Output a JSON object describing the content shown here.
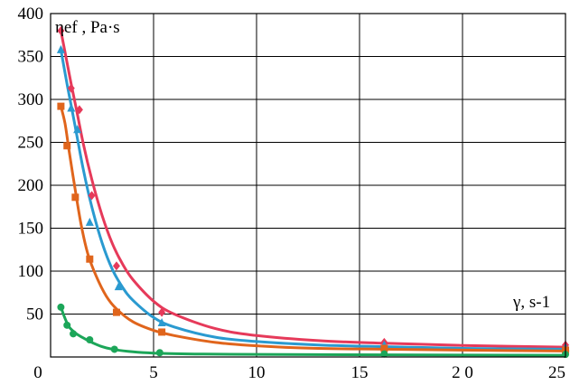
{
  "chart_data": {
    "type": "line",
    "title": "",
    "ylabel": "ηef , Pa·s",
    "xlabel": "γ, s-1",
    "xlim": [
      0,
      25
    ],
    "ylim": [
      0,
      400
    ],
    "grid": true,
    "x_ticks": [
      "0",
      "5",
      "10",
      "15",
      "2 0",
      "25"
    ],
    "y_ticks": [
      "50",
      "100",
      "150",
      "200",
      "250",
      "300",
      "350",
      "400"
    ],
    "series": [
      {
        "color": "#e63a5a",
        "marker": "diamond",
        "points": [
          [
            0.5,
            380
          ],
          [
            1.0,
            313
          ],
          [
            1.4,
            288
          ],
          [
            2.0,
            188
          ],
          [
            3.2,
            106
          ],
          [
            5.4,
            52
          ],
          [
            16.2,
            17
          ],
          [
            25.0,
            14
          ]
        ],
        "curve": [
          [
            0.5,
            380
          ],
          [
            0.8,
            343
          ],
          [
            1.0,
            318
          ],
          [
            1.3,
            283
          ],
          [
            1.6,
            247
          ],
          [
            2.0,
            207
          ],
          [
            2.5,
            165
          ],
          [
            3.0,
            132
          ],
          [
            3.5,
            108
          ],
          [
            4.0,
            90
          ],
          [
            5.0,
            65
          ],
          [
            6.0,
            50
          ],
          [
            8.0,
            33
          ],
          [
            10.0,
            25
          ],
          [
            13.0,
            19
          ],
          [
            16.2,
            16
          ],
          [
            20.0,
            13.5
          ],
          [
            25.0,
            11.5
          ]
        ]
      },
      {
        "color": "#2a9ad0",
        "marker": "triangle",
        "points": [
          [
            0.5,
            358
          ],
          [
            1.0,
            290
          ],
          [
            1.3,
            265
          ],
          [
            1.9,
            157
          ],
          [
            3.3,
            82
          ],
          [
            5.4,
            40
          ],
          [
            16.2,
            14
          ],
          [
            25.0,
            11
          ]
        ],
        "curve": [
          [
            0.5,
            358
          ],
          [
            0.8,
            318
          ],
          [
            1.0,
            293
          ],
          [
            1.3,
            255
          ],
          [
            1.6,
            217
          ],
          [
            2.0,
            175
          ],
          [
            2.5,
            133
          ],
          [
            3.0,
            102
          ],
          [
            3.5,
            81
          ],
          [
            4.0,
            66
          ],
          [
            5.0,
            46
          ],
          [
            6.0,
            35
          ],
          [
            8.0,
            23
          ],
          [
            10.0,
            18
          ],
          [
            13.0,
            14
          ],
          [
            16.2,
            12
          ],
          [
            20.0,
            10
          ],
          [
            25.0,
            9
          ]
        ]
      },
      {
        "color": "#e0651c",
        "marker": "square",
        "points": [
          [
            0.5,
            292
          ],
          [
            0.8,
            246
          ],
          [
            1.2,
            186
          ],
          [
            1.9,
            114
          ],
          [
            3.2,
            52
          ],
          [
            5.4,
            29
          ],
          [
            16.2,
            10
          ],
          [
            25.0,
            8
          ]
        ],
        "curve": [
          [
            0.5,
            292
          ],
          [
            0.7,
            272
          ],
          [
            0.9,
            240
          ],
          [
            1.2,
            194
          ],
          [
            1.5,
            152
          ],
          [
            1.8,
            121
          ],
          [
            2.2,
            95
          ],
          [
            2.7,
            71
          ],
          [
            3.2,
            56
          ],
          [
            4.0,
            41
          ],
          [
            5.0,
            31
          ],
          [
            6.0,
            25
          ],
          [
            8.0,
            17
          ],
          [
            10.0,
            13
          ],
          [
            13.0,
            10
          ],
          [
            16.2,
            9
          ],
          [
            20.0,
            8
          ],
          [
            25.0,
            7
          ]
        ]
      },
      {
        "color": "#1ca659",
        "marker": "circle",
        "points": [
          [
            0.5,
            58
          ],
          [
            0.8,
            37
          ],
          [
            1.1,
            27
          ],
          [
            1.9,
            20
          ],
          [
            3.1,
            9
          ],
          [
            5.3,
            5
          ],
          [
            16.2,
            3.5
          ],
          [
            25.0,
            3
          ]
        ],
        "curve": [
          [
            0.5,
            58
          ],
          [
            0.7,
            45
          ],
          [
            0.9,
            35
          ],
          [
            1.2,
            28
          ],
          [
            1.6,
            22
          ],
          [
            2.0,
            17
          ],
          [
            2.5,
            12
          ],
          [
            3.0,
            9
          ],
          [
            4.0,
            6
          ],
          [
            5.0,
            4.5
          ],
          [
            7.0,
            3.5
          ],
          [
            10.0,
            3
          ],
          [
            16.2,
            2.5
          ],
          [
            25.0,
            2
          ]
        ]
      }
    ]
  }
}
